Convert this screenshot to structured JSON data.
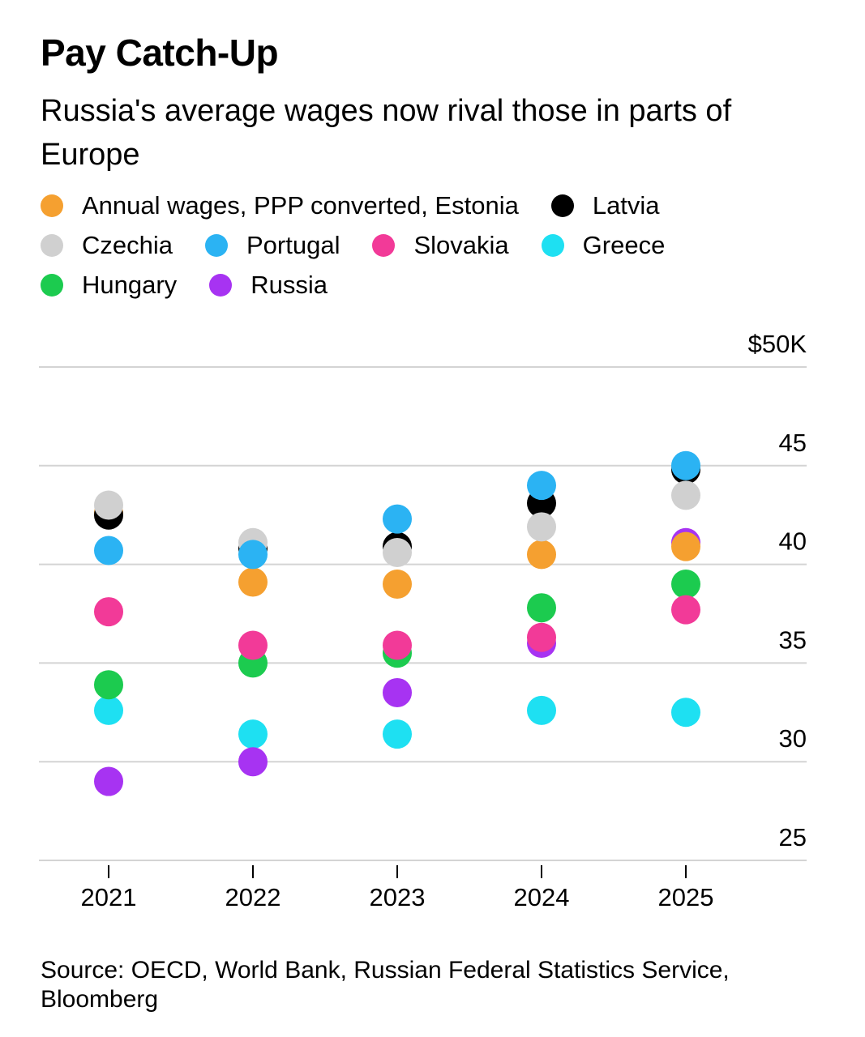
{
  "header": {
    "title": "Pay Catch-Up",
    "subtitle": "Russia's average wages now rival those in parts of Europe"
  },
  "footer": {
    "source": "Source: OECD, World Bank, Russian Federal Statistics Service, Bloomberg"
  },
  "chart_data": {
    "type": "scatter",
    "x": [
      "2021",
      "2022",
      "2023",
      "2024",
      "2025"
    ],
    "ylim": [
      25,
      50
    ],
    "yticks": [
      25,
      30,
      35,
      40,
      45,
      50
    ],
    "ytick_labels": [
      "25",
      "30",
      "35",
      "40",
      "45",
      "$50K"
    ],
    "grid": true,
    "legend_position": "top",
    "series": [
      {
        "name": "Annual wages, PPP converted, Estonia",
        "color": "#f5a030",
        "values": [
          42.6,
          39.1,
          39.0,
          40.5,
          40.9
        ]
      },
      {
        "name": "Latvia",
        "color": "#000000",
        "values": [
          42.5,
          40.8,
          40.9,
          43.1,
          44.8
        ]
      },
      {
        "name": "Czechia",
        "color": "#d0d0d0",
        "values": [
          43.0,
          41.1,
          40.6,
          41.9,
          43.5
        ]
      },
      {
        "name": "Portugal",
        "color": "#2bb3f3",
        "values": [
          40.7,
          40.5,
          42.3,
          44.0,
          45.0
        ]
      },
      {
        "name": "Slovakia",
        "color": "#f23a98",
        "values": [
          37.6,
          35.9,
          35.9,
          36.3,
          37.7
        ]
      },
      {
        "name": "Greece",
        "color": "#1ee0f2",
        "values": [
          32.6,
          31.4,
          31.4,
          32.6,
          32.5
        ]
      },
      {
        "name": "Hungary",
        "color": "#1ccb4f",
        "values": [
          33.9,
          35.0,
          35.5,
          37.8,
          39.0
        ]
      },
      {
        "name": "Russia",
        "color": "#a733f2",
        "values": [
          29.0,
          30.0,
          33.5,
          36.0,
          41.1
        ]
      }
    ]
  }
}
